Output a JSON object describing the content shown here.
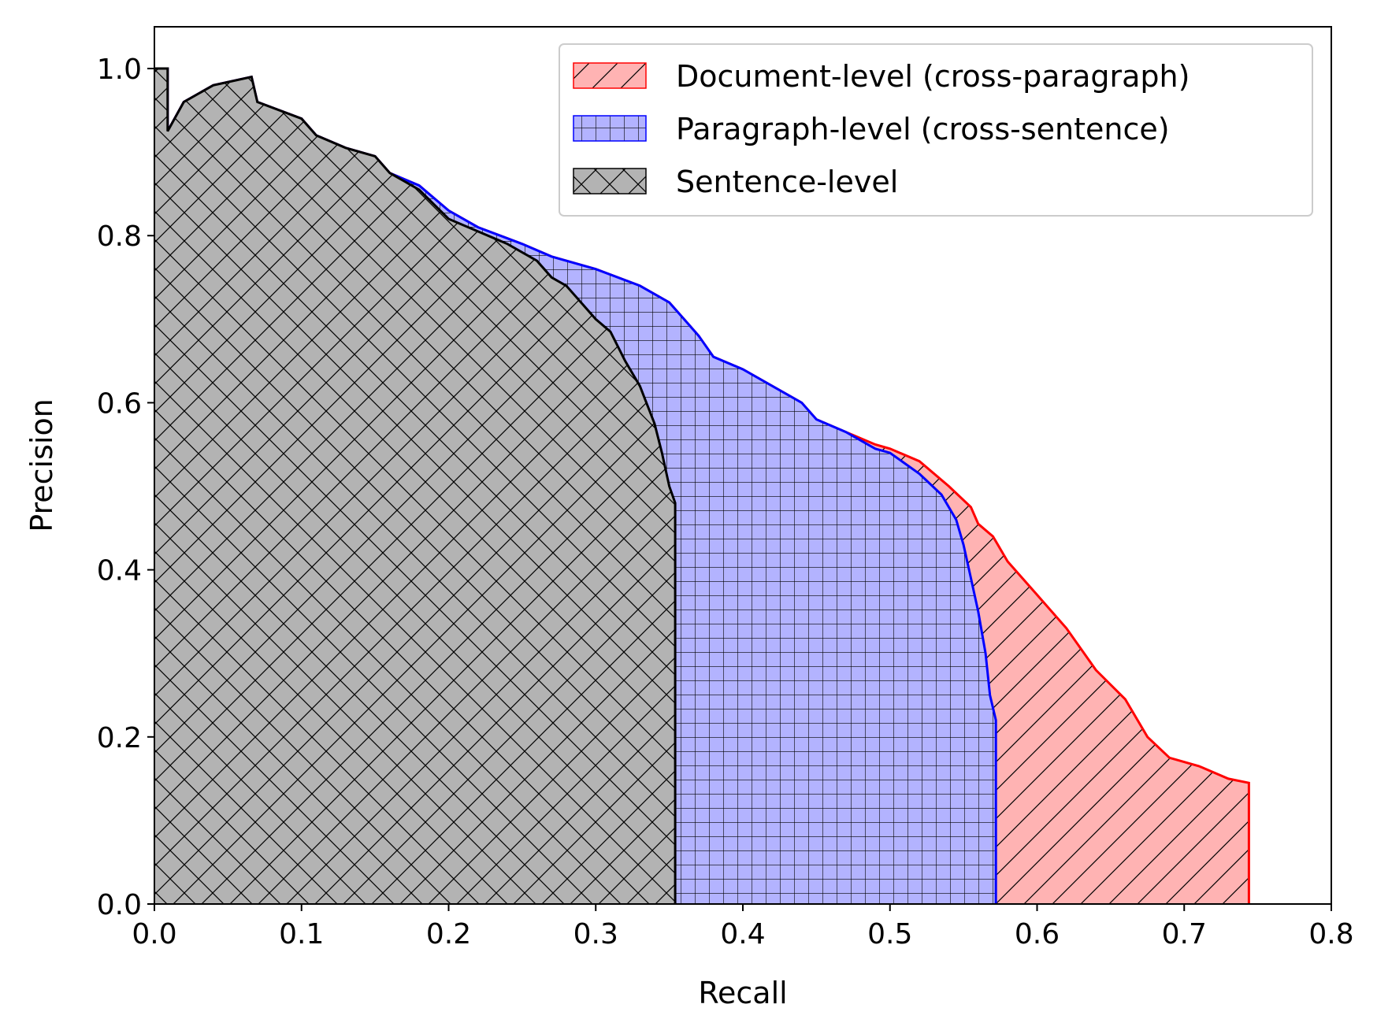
{
  "chart_data": {
    "type": "area",
    "xlabel": "Recall",
    "ylabel": "Precision",
    "xlim": [
      0.0,
      0.8
    ],
    "ylim": [
      0.0,
      1.05
    ],
    "xticks": [
      "0.0",
      "0.1",
      "0.2",
      "0.3",
      "0.4",
      "0.5",
      "0.6",
      "0.7",
      "0.8"
    ],
    "yticks": [
      "0.0",
      "0.2",
      "0.4",
      "0.6",
      "0.8",
      "1.0"
    ],
    "grid": false,
    "legend_position": "top-right",
    "series": [
      {
        "name": "Document-level (cross-paragraph)",
        "line_color": "#ff0000",
        "fill_color": "#ffb3b3",
        "hatch": "diagonal",
        "points": [
          [
            0.0,
            1.0
          ],
          [
            0.009,
            1.0
          ],
          [
            0.009,
            0.925
          ],
          [
            0.02,
            0.96
          ],
          [
            0.04,
            0.98
          ],
          [
            0.066,
            0.99
          ],
          [
            0.07,
            0.96
          ],
          [
            0.1,
            0.94
          ],
          [
            0.11,
            0.92
          ],
          [
            0.13,
            0.905
          ],
          [
            0.15,
            0.895
          ],
          [
            0.16,
            0.875
          ],
          [
            0.18,
            0.86
          ],
          [
            0.2,
            0.83
          ],
          [
            0.22,
            0.81
          ],
          [
            0.25,
            0.79
          ],
          [
            0.27,
            0.775
          ],
          [
            0.3,
            0.76
          ],
          [
            0.33,
            0.74
          ],
          [
            0.35,
            0.72
          ],
          [
            0.36,
            0.7
          ],
          [
            0.37,
            0.68
          ],
          [
            0.38,
            0.655
          ],
          [
            0.4,
            0.64
          ],
          [
            0.42,
            0.62
          ],
          [
            0.44,
            0.6
          ],
          [
            0.45,
            0.58
          ],
          [
            0.47,
            0.565
          ],
          [
            0.49,
            0.55
          ],
          [
            0.5,
            0.545
          ],
          [
            0.52,
            0.53
          ],
          [
            0.54,
            0.5
          ],
          [
            0.555,
            0.475
          ],
          [
            0.56,
            0.455
          ],
          [
            0.57,
            0.44
          ],
          [
            0.58,
            0.41
          ],
          [
            0.6,
            0.37
          ],
          [
            0.62,
            0.33
          ],
          [
            0.64,
            0.28
          ],
          [
            0.66,
            0.245
          ],
          [
            0.675,
            0.2
          ],
          [
            0.69,
            0.175
          ],
          [
            0.71,
            0.165
          ],
          [
            0.73,
            0.15
          ],
          [
            0.744,
            0.145
          ],
          [
            0.744,
            0.0
          ]
        ]
      },
      {
        "name": "Paragraph-level (cross-sentence)",
        "line_color": "#0000ff",
        "fill_color": "#b3b3ff",
        "hatch": "grid",
        "points": [
          [
            0.0,
            1.0
          ],
          [
            0.009,
            1.0
          ],
          [
            0.009,
            0.925
          ],
          [
            0.02,
            0.96
          ],
          [
            0.04,
            0.98
          ],
          [
            0.066,
            0.99
          ],
          [
            0.07,
            0.96
          ],
          [
            0.1,
            0.94
          ],
          [
            0.11,
            0.92
          ],
          [
            0.13,
            0.905
          ],
          [
            0.15,
            0.895
          ],
          [
            0.16,
            0.875
          ],
          [
            0.18,
            0.86
          ],
          [
            0.2,
            0.83
          ],
          [
            0.22,
            0.81
          ],
          [
            0.25,
            0.79
          ],
          [
            0.27,
            0.775
          ],
          [
            0.3,
            0.76
          ],
          [
            0.33,
            0.74
          ],
          [
            0.35,
            0.72
          ],
          [
            0.36,
            0.7
          ],
          [
            0.37,
            0.68
          ],
          [
            0.38,
            0.655
          ],
          [
            0.4,
            0.64
          ],
          [
            0.42,
            0.62
          ],
          [
            0.44,
            0.6
          ],
          [
            0.45,
            0.58
          ],
          [
            0.47,
            0.565
          ],
          [
            0.49,
            0.545
          ],
          [
            0.5,
            0.54
          ],
          [
            0.52,
            0.515
          ],
          [
            0.535,
            0.49
          ],
          [
            0.545,
            0.46
          ],
          [
            0.55,
            0.43
          ],
          [
            0.555,
            0.39
          ],
          [
            0.56,
            0.35
          ],
          [
            0.565,
            0.3
          ],
          [
            0.568,
            0.25
          ],
          [
            0.572,
            0.22
          ],
          [
            0.572,
            0.0
          ]
        ]
      },
      {
        "name": "Sentence-level",
        "line_color": "#000000",
        "fill_color": "#b3b3b3",
        "hatch": "crosshatch",
        "points": [
          [
            0.0,
            1.0
          ],
          [
            0.009,
            1.0
          ],
          [
            0.009,
            0.925
          ],
          [
            0.02,
            0.96
          ],
          [
            0.04,
            0.98
          ],
          [
            0.066,
            0.99
          ],
          [
            0.07,
            0.96
          ],
          [
            0.1,
            0.94
          ],
          [
            0.11,
            0.92
          ],
          [
            0.13,
            0.905
          ],
          [
            0.15,
            0.895
          ],
          [
            0.16,
            0.875
          ],
          [
            0.18,
            0.855
          ],
          [
            0.2,
            0.82
          ],
          [
            0.22,
            0.805
          ],
          [
            0.24,
            0.79
          ],
          [
            0.26,
            0.77
          ],
          [
            0.27,
            0.75
          ],
          [
            0.28,
            0.74
          ],
          [
            0.29,
            0.72
          ],
          [
            0.3,
            0.7
          ],
          [
            0.31,
            0.685
          ],
          [
            0.32,
            0.65
          ],
          [
            0.33,
            0.62
          ],
          [
            0.34,
            0.575
          ],
          [
            0.345,
            0.54
          ],
          [
            0.35,
            0.5
          ],
          [
            0.354,
            0.48
          ],
          [
            0.354,
            0.0
          ]
        ]
      }
    ]
  }
}
